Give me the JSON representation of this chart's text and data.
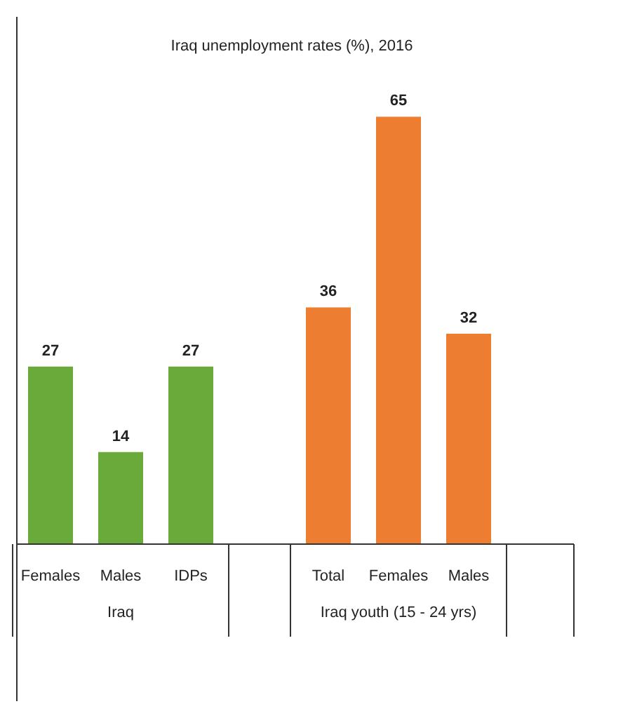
{
  "chart_data": {
    "type": "bar",
    "title": "Iraq unemployment rates (%), 2016",
    "categories": [
      "Females",
      "Males",
      "IDPs",
      "Total",
      "Females",
      "Males"
    ],
    "series": [
      {
        "color": "#6aaa3a",
        "values": [
          27,
          14,
          27,
          null,
          null,
          null
        ]
      },
      {
        "color": "#ed7d31",
        "values": [
          null,
          null,
          null,
          36,
          65,
          32
        ]
      }
    ],
    "annotations": [
      "Iraq",
      "Iraq youth (15 - 24 yrs)"
    ],
    "data_labels": true
  }
}
